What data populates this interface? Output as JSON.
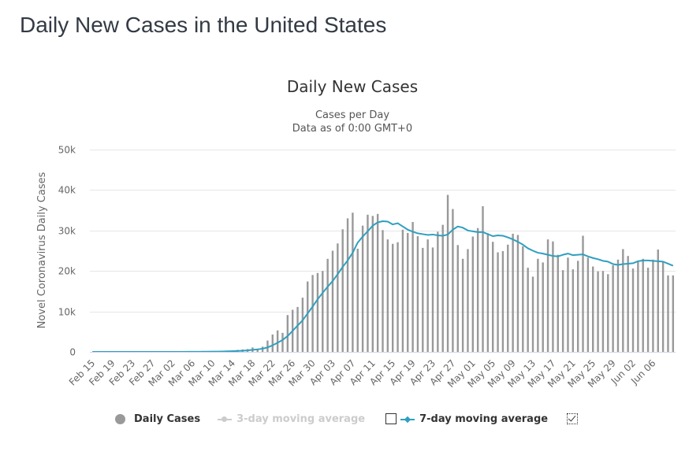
{
  "page": {
    "title": "Daily New Cases in the United States"
  },
  "chart_data": {
    "type": "bar",
    "title": "Daily New Cases",
    "subtitle_line1": "Cases per Day",
    "subtitle_line2": "Data as of 0:00 GMT+0",
    "ylabel": "Novel Coronavirus Daily Cases",
    "xlabel": "",
    "ylim": [
      0,
      50000
    ],
    "yticks": [
      0,
      10000,
      20000,
      30000,
      40000,
      50000
    ],
    "ytick_labels": [
      "0",
      "10k",
      "20k",
      "30k",
      "40k",
      "50k"
    ],
    "grid": true,
    "legend_placement": "bottom-center",
    "x_tick_labels": [
      "Feb 15",
      "Feb 19",
      "Feb 23",
      "Feb 27",
      "Mar 02",
      "Mar 06",
      "Mar 10",
      "Mar 14",
      "Mar 18",
      "Mar 22",
      "Mar 26",
      "Mar 30",
      "Apr 03",
      "Apr 07",
      "Apr 11",
      "Apr 15",
      "Apr 19",
      "Apr 23",
      "Apr 27",
      "May 01",
      "May 05",
      "May 09",
      "May 13",
      "May 17",
      "May 21",
      "May 25",
      "May 29",
      "Jun 02",
      "Jun 06"
    ],
    "x_start": "Feb 15",
    "x_end": "Jun 08",
    "series": [
      {
        "name": "Daily Cases",
        "type": "bar",
        "color": "#999999",
        "values": [
          0,
          0,
          0,
          0,
          0,
          0,
          0,
          0,
          0,
          0,
          0,
          0,
          0,
          0,
          5,
          10,
          15,
          20,
          30,
          35,
          45,
          60,
          80,
          100,
          120,
          150,
          200,
          250,
          350,
          500,
          600,
          700,
          1100,
          800,
          1300,
          2800,
          4300,
          5300,
          4700,
          9100,
          10400,
          11100,
          13400,
          17400,
          19000,
          19500,
          20000,
          23000,
          25000,
          26800,
          30300,
          33000,
          34400,
          25500,
          31200,
          33900,
          33600,
          34100,
          30100,
          27800,
          26700,
          27100,
          30200,
          29400,
          32100,
          28600,
          25700,
          27800,
          25800,
          29700,
          31400,
          38800,
          35300,
          26400,
          23000,
          25400,
          28500,
          30600,
          36000,
          29300,
          27200,
          24600,
          24900,
          26500,
          29200,
          28900,
          26100,
          20800,
          18600,
          23000,
          22100,
          27800,
          27300,
          24000,
          20200,
          23300,
          20400,
          22500,
          28700,
          23300,
          21100,
          19900,
          20000,
          19200,
          21400,
          22800,
          25400,
          23700,
          20600,
          22200,
          23000,
          20800,
          22800,
          25300,
          22400,
          18900,
          18900
        ]
      },
      {
        "name": "3-day moving average",
        "type": "line",
        "color": "#cccccc",
        "visible": false
      },
      {
        "name": "7-day moving average",
        "type": "line",
        "color": "#2f9fbf",
        "visible": true,
        "values": [
          0,
          0,
          0,
          0,
          0,
          0,
          0,
          0,
          0,
          0,
          0,
          0,
          0,
          0,
          1,
          2,
          4,
          7,
          11,
          16,
          22,
          29,
          38,
          50,
          64,
          82,
          105,
          135,
          175,
          225,
          290,
          370,
          500,
          620,
          790,
          1100,
          1620,
          2250,
          2950,
          3900,
          5200,
          6500,
          7800,
          9500,
          11200,
          13000,
          14600,
          16100,
          17500,
          19200,
          21000,
          22600,
          24500,
          27000,
          28500,
          29800,
          31200,
          32000,
          32300,
          32200,
          31500,
          31800,
          31000,
          30200,
          29700,
          29300,
          29100,
          28900,
          29000,
          28800,
          28700,
          29000,
          30200,
          31000,
          30700,
          30000,
          29800,
          29600,
          29600,
          29100,
          28600,
          28800,
          28700,
          28300,
          27800,
          27200,
          26500,
          25600,
          25000,
          24500,
          24300,
          24000,
          23700,
          23600,
          24000,
          24300,
          23900,
          24000,
          24100,
          23600,
          23200,
          22900,
          22500,
          22300,
          21700,
          21500,
          21700,
          21800,
          21900,
          22400,
          22600,
          22600,
          22500,
          22400,
          22300,
          21800,
          21300
        ]
      }
    ]
  },
  "legend": {
    "items": [
      {
        "label": "Daily Cases",
        "active": true,
        "color": "#999999"
      },
      {
        "label": "3-day moving average",
        "active": false,
        "color": "#cccccc",
        "checkbox_checked": false
      },
      {
        "label": "7-day moving average",
        "active": true,
        "color": "#2f9fbf",
        "checkbox_checked": true
      }
    ]
  }
}
